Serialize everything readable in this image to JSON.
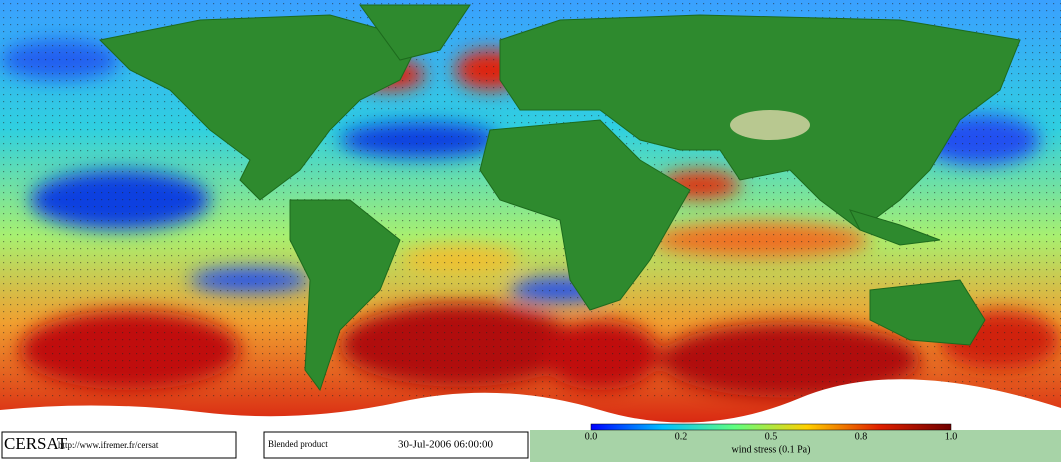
{
  "footer": {
    "logo": "CERSAT",
    "url": "http://www.ifremer.fr/cersat",
    "product": "Blended product",
    "timestamp": "30-Jul-2006 06:00:00"
  },
  "colorbar": {
    "ticks": [
      "0.0",
      "0.2",
      "0.5",
      "0.8",
      "1.0"
    ],
    "label": "wind stress (0.1 Pa)"
  }
}
